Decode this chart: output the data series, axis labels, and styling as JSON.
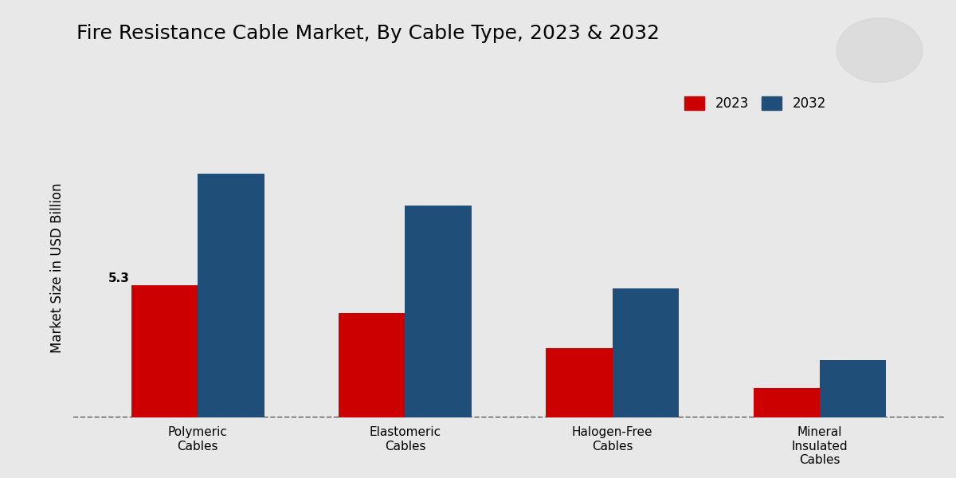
{
  "title": "Fire Resistance Cable Market, By Cable Type, 2023 & 2032",
  "ylabel": "Market Size in USD Billion",
  "categories": [
    "Polymeric\nCables",
    "Elastomeric\nCables",
    "Halogen-Free\nCables",
    "Mineral\nInsulated\nCables"
  ],
  "values_2023": [
    5.3,
    4.2,
    2.8,
    1.2
  ],
  "values_2032": [
    9.8,
    8.5,
    5.2,
    2.3
  ],
  "color_2023": "#cc0000",
  "color_2032": "#1f4e79",
  "background_color": "#e8e8e8",
  "annotation_value": "5.3",
  "annotation_series": 0,
  "annotation_year": "2023",
  "legend_labels": [
    "2023",
    "2032"
  ],
  "bar_width": 0.32,
  "ylim": [
    0,
    12
  ],
  "dashed_line_y": 0
}
